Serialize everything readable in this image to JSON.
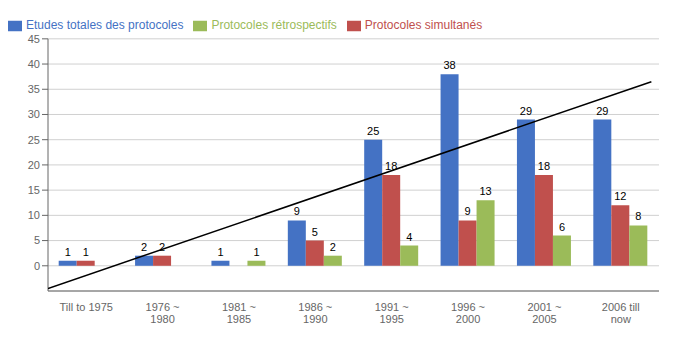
{
  "chart_data": {
    "type": "bar",
    "categories": [
      "Till to 1975",
      "1976 ~\n1980",
      "1981 ~\n1985",
      "1986 ~\n1990",
      "1991 ~\n1995",
      "1996 ~\n2000",
      "2001 ~\n2005",
      "2006 till\nnow"
    ],
    "series": [
      {
        "name": "Etudes totales des protocoles",
        "color": "#4472C4",
        "values": [
          1,
          2,
          1,
          9,
          25,
          38,
          29,
          29
        ]
      },
      {
        "name": "Protocoles simultanés",
        "color": "#C0504D",
        "values": [
          1,
          2,
          0,
          5,
          18,
          9,
          18,
          12
        ]
      },
      {
        "name": "Protocoles rétrospectifs",
        "color": "#9BBB59",
        "values": [
          0,
          0,
          1,
          2,
          4,
          13,
          6,
          8
        ]
      }
    ],
    "ylim": [
      -5,
      45
    ],
    "yticks": [
      0,
      5,
      10,
      15,
      20,
      25,
      30,
      35,
      40,
      45
    ],
    "grid": true,
    "data_labels": true,
    "legend": "upper left",
    "trend_line": {
      "x": [
        -0.5,
        7.4
      ],
      "values": [
        -4.5,
        36.5
      ],
      "color": "#000000"
    }
  }
}
